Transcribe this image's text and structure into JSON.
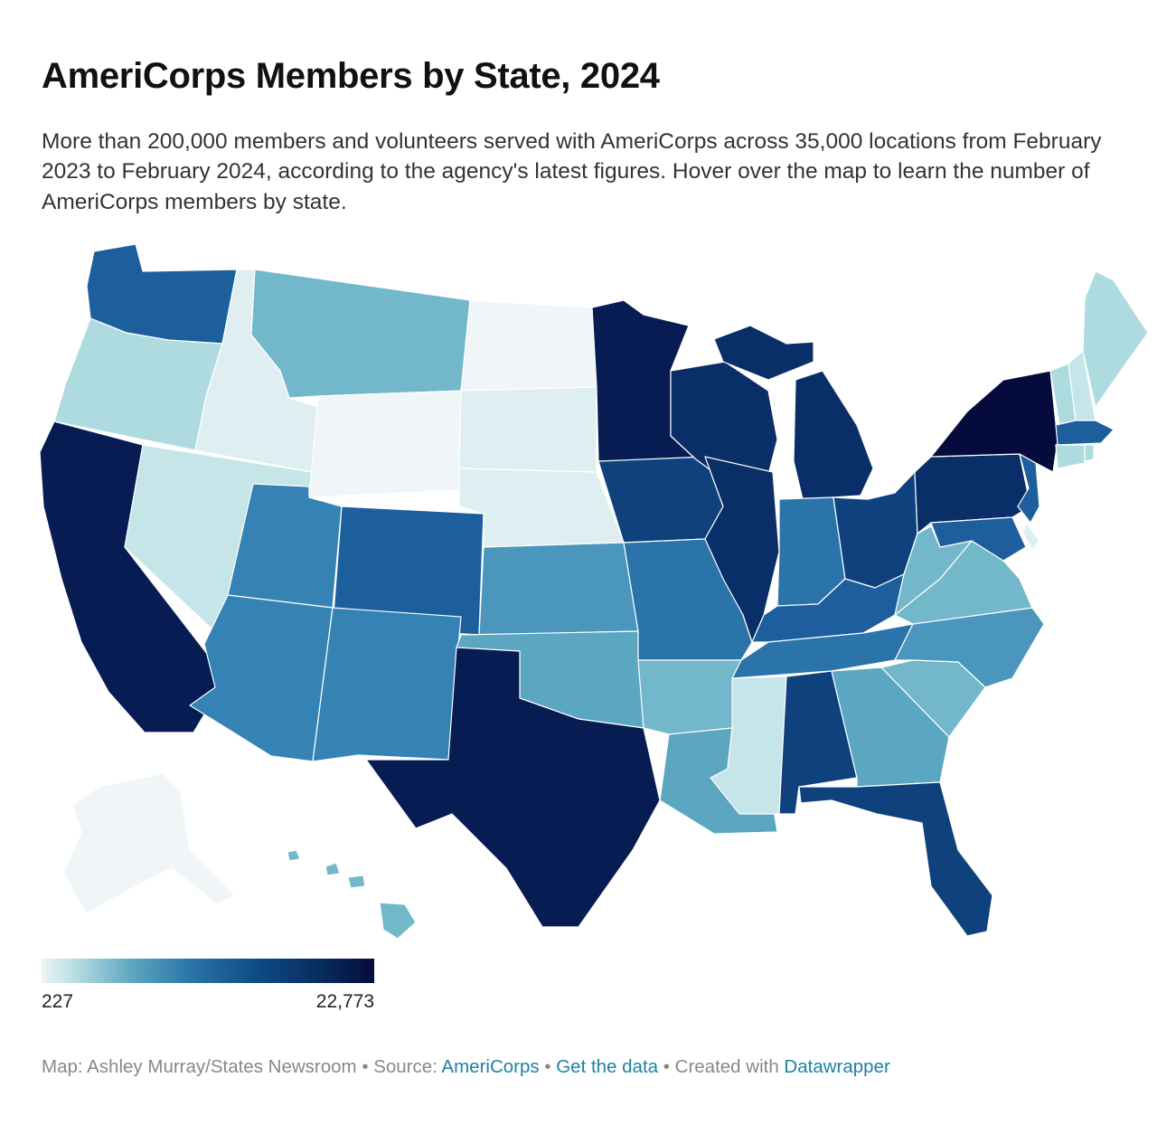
{
  "title": "AmeriCorps Members by State, 2024",
  "subtitle": "More than 200,000 members and volunteers served with AmeriCorps across 35,000 locations from February 2023 to February 2024, according to the agency's latest figures. Hover over the map to learn the number of AmeriCorps members by state.",
  "legend": {
    "min": "227",
    "max": "22,773"
  },
  "footer": {
    "map_credit": "Map: Ashley Murray/States Newsroom",
    "sep": " • ",
    "source_label": "Source: ",
    "source_link": "AmeriCorps",
    "data_link": "Get the data",
    "created_label": "Created with ",
    "created_link": "Datawrapper"
  },
  "colors": {
    "c0": "#f0f6f8",
    "c1": "#deeef1",
    "c2": "#c6e5e8",
    "c3": "#aedbe0",
    "c4": "#72b7ca",
    "c5": "#5ba6c1",
    "c6": "#4a96bc",
    "c7": "#3583b4",
    "c8": "#2b74aa",
    "c9": "#1d5f9c",
    "c10": "#15508d",
    "c11": "#0f417d",
    "c12": "#0a2f68",
    "c13": "#061c52",
    "c14": "#050c3d"
  }
}
